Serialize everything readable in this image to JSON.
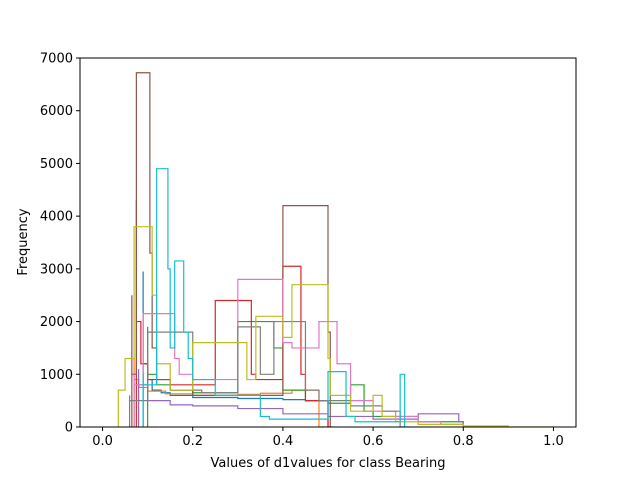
{
  "chart_data": {
    "type": "line",
    "title": "",
    "xlabel": "Values of d1values for class Bearing",
    "ylabel": "Frequency",
    "xlim": [
      -0.05,
      1.05
    ],
    "ylim": [
      0,
      7000
    ],
    "xticks": [
      "0.0",
      "0.2",
      "0.4",
      "0.6",
      "0.8",
      "1.0"
    ],
    "yticks": [
      "0",
      "1000",
      "2000",
      "3000",
      "4000",
      "5000",
      "6000",
      "7000"
    ],
    "grid": false,
    "legend": "none",
    "style": "step-histogram",
    "series": [
      {
        "color": "#1f77b4",
        "points": [
          [
            0.09,
            0
          ],
          [
            0.09,
            2950
          ],
          [
            0.1,
            1200
          ],
          [
            0.11,
            900
          ],
          [
            0.13,
            700
          ],
          [
            0.15,
            650
          ],
          [
            0.2,
            600
          ],
          [
            0.3,
            560
          ],
          [
            0.4,
            540
          ],
          [
            0.45,
            520
          ],
          [
            0.5,
            500
          ],
          [
            0.505,
            0
          ]
        ]
      },
      {
        "color": "#ff7f0e",
        "points": [
          [
            0.07,
            0
          ],
          [
            0.07,
            1300
          ],
          [
            0.08,
            900
          ],
          [
            0.1,
            750
          ],
          [
            0.14,
            680
          ],
          [
            0.2,
            630
          ],
          [
            0.3,
            600
          ],
          [
            0.35,
            620
          ],
          [
            0.42,
            640
          ],
          [
            0.48,
            700
          ],
          [
            0.5,
            0
          ]
        ]
      },
      {
        "color": "#2ca02c",
        "points": [
          [
            0.1,
            0
          ],
          [
            0.1,
            1900
          ],
          [
            0.12,
            1000
          ],
          [
            0.15,
            800
          ],
          [
            0.2,
            700
          ],
          [
            0.3,
            650
          ],
          [
            0.38,
            2000
          ],
          [
            0.4,
            1500
          ],
          [
            0.45,
            700
          ],
          [
            0.5,
            500
          ],
          [
            0.55,
            450
          ],
          [
            0.58,
            800
          ],
          [
            0.6,
            300
          ],
          [
            0.7,
            200
          ],
          [
            0.8,
            100
          ],
          [
            0.805,
            0
          ]
        ]
      },
      {
        "color": "#d62728",
        "points": [
          [
            0.075,
            0
          ],
          [
            0.075,
            4300
          ],
          [
            0.085,
            2000
          ],
          [
            0.1,
            1200
          ],
          [
            0.15,
            900
          ],
          [
            0.25,
            800
          ],
          [
            0.33,
            2400
          ],
          [
            0.34,
            1000
          ],
          [
            0.4,
            900
          ],
          [
            0.44,
            3050
          ],
          [
            0.45,
            1000
          ],
          [
            0.5,
            500
          ],
          [
            0.505,
            0
          ]
        ]
      },
      {
        "color": "#9467bd",
        "points": [
          [
            0.08,
            0
          ],
          [
            0.08,
            1100
          ],
          [
            0.1,
            800
          ],
          [
            0.15,
            500
          ],
          [
            0.2,
            420
          ],
          [
            0.3,
            400
          ],
          [
            0.4,
            350
          ],
          [
            0.5,
            250
          ],
          [
            0.6,
            200
          ],
          [
            0.7,
            150
          ],
          [
            0.79,
            250
          ],
          [
            0.8,
            100
          ],
          [
            0.81,
            0
          ]
        ]
      },
      {
        "color": "#8c564b",
        "points": [
          [
            0.065,
            0
          ],
          [
            0.065,
            2500
          ],
          [
            0.075,
            1000
          ],
          [
            0.105,
            6720
          ],
          [
            0.11,
            3300
          ],
          [
            0.12,
            1500
          ],
          [
            0.15,
            900
          ],
          [
            0.2,
            700
          ],
          [
            0.3,
            600
          ],
          [
            0.4,
            600
          ],
          [
            0.5,
            4200
          ],
          [
            0.505,
            1800
          ],
          [
            0.51,
            0
          ]
        ]
      },
      {
        "color": "#e377c2",
        "points": [
          [
            0.07,
            0
          ],
          [
            0.07,
            1000
          ],
          [
            0.09,
            800
          ],
          [
            0.16,
            2150
          ],
          [
            0.17,
            1300
          ],
          [
            0.2,
            1000
          ],
          [
            0.3,
            900
          ],
          [
            0.4,
            2800
          ],
          [
            0.42,
            1600
          ],
          [
            0.48,
            1500
          ],
          [
            0.52,
            2000
          ],
          [
            0.55,
            1200
          ],
          [
            0.6,
            500
          ],
          [
            0.65,
            300
          ],
          [
            0.7,
            200
          ],
          [
            0.75,
            100
          ],
          [
            0.8,
            50
          ],
          [
            0.85,
            0
          ]
        ]
      },
      {
        "color": "#7f7f7f",
        "points": [
          [
            0.06,
            0
          ],
          [
            0.06,
            600
          ],
          [
            0.1,
            500
          ],
          [
            0.2,
            1800
          ],
          [
            0.22,
            700
          ],
          [
            0.3,
            650
          ],
          [
            0.35,
            1900
          ],
          [
            0.38,
            1000
          ],
          [
            0.45,
            2000
          ],
          [
            0.48,
            700
          ],
          [
            0.55,
            500
          ],
          [
            0.62,
            400
          ],
          [
            0.66,
            300
          ],
          [
            0.67,
            0
          ]
        ]
      },
      {
        "color": "#bcbd22",
        "points": [
          [
            0.035,
            0
          ],
          [
            0.035,
            400
          ],
          [
            0.05,
            700
          ],
          [
            0.07,
            1300
          ],
          [
            0.11,
            3800
          ],
          [
            0.12,
            2500
          ],
          [
            0.15,
            1200
          ],
          [
            0.2,
            700
          ],
          [
            0.32,
            1600
          ],
          [
            0.34,
            900
          ],
          [
            0.4,
            2100
          ],
          [
            0.42,
            1700
          ],
          [
            0.5,
            2700
          ],
          [
            0.505,
            1300
          ],
          [
            0.55,
            600
          ],
          [
            0.6,
            300
          ],
          [
            0.62,
            600
          ],
          [
            0.65,
            200
          ],
          [
            0.7,
            100
          ],
          [
            0.8,
            50
          ],
          [
            0.9,
            20
          ],
          [
            1.0,
            0
          ]
        ]
      },
      {
        "color": "#17becf",
        "points": [
          [
            0.09,
            0
          ],
          [
            0.09,
            1000
          ],
          [
            0.12,
            800
          ],
          [
            0.145,
            4900
          ],
          [
            0.15,
            3000
          ],
          [
            0.16,
            1500
          ],
          [
            0.18,
            3150
          ],
          [
            0.19,
            1800
          ],
          [
            0.2,
            1300
          ],
          [
            0.25,
            900
          ],
          [
            0.35,
            600
          ],
          [
            0.37,
            200
          ],
          [
            0.5,
            150
          ],
          [
            0.54,
            1050
          ],
          [
            0.56,
            200
          ],
          [
            0.66,
            100
          ],
          [
            0.67,
            1000
          ],
          [
            0.68,
            0
          ]
        ]
      }
    ]
  }
}
